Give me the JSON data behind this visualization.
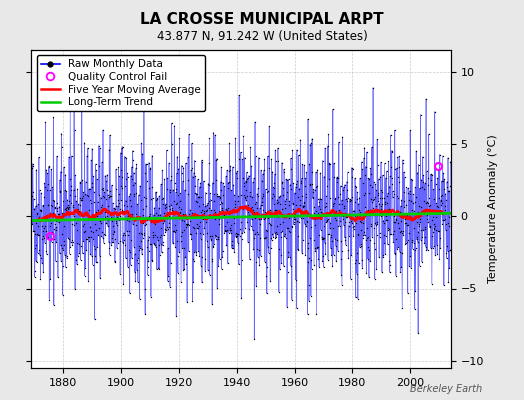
{
  "title": "LA CROSSE MUNICIPAL ARPT",
  "subtitle": "43.877 N, 91.242 W (United States)",
  "ylabel": "Temperature Anomaly (°C)",
  "credit": "Berkeley Earth",
  "xlim": [
    1869,
    2014
  ],
  "ylim": [
    -10.5,
    11.5
  ],
  "yticks": [
    -10,
    -5,
    0,
    5,
    10
  ],
  "xticks": [
    1880,
    1900,
    1920,
    1940,
    1960,
    1980,
    2000
  ],
  "start_year": 1869,
  "end_year": 2013,
  "seed": 42,
  "raw_color": "#0000FF",
  "raw_alpha": 0.6,
  "ma_color": "#FF0000",
  "trend_color": "#00CC00",
  "qc_color": "#FF00FF",
  "bg_color": "#E8E8E8",
  "plot_bg_color": "#FFFFFF",
  "grid_color": "#AAAAAA",
  "title_fontsize": 11,
  "subtitle_fontsize": 8.5,
  "tick_fontsize": 8,
  "legend_fontsize": 7.5,
  "ylabel_fontsize": 8
}
